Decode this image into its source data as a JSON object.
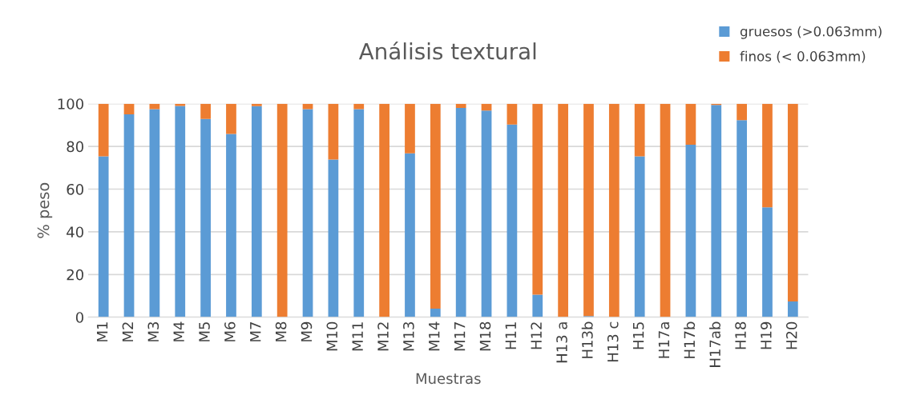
{
  "chart_data": {
    "type": "bar",
    "title": "Análisis textural",
    "xlabel": "Muestras",
    "ylabel": "% peso",
    "categories": [
      "M1",
      "M2",
      "M3",
      "M4",
      "M5",
      "M6",
      "M7",
      "M8",
      "M9",
      "M10",
      "M11",
      "M12",
      "M13",
      "M14",
      "M17",
      "M18",
      "H11",
      "H12",
      "H13 a",
      "H13b",
      "H13 c",
      "H15",
      "H17a",
      "H17b",
      "H17ab",
      "H18",
      "H19",
      "H20"
    ],
    "stacked": true,
    "series": [
      {
        "name": "gruesos (>0.063mm)",
        "color": "#5b9bd5",
        "values": [
          75.4,
          95,
          97.5,
          99,
          92.9,
          85.9,
          98.9,
          0,
          97.5,
          73.9,
          97.5,
          0,
          76.8,
          4,
          98,
          96.8,
          90.3,
          10.6,
          0,
          0.5,
          0,
          75.4,
          0,
          80.8,
          99.4,
          92.3,
          51.5,
          7.4
        ]
      },
      {
        "name": "finos (< 0.063mm)",
        "color": "#ed7d31",
        "values": [
          24.6,
          5,
          2.5,
          1,
          7.1,
          14.1,
          1.1,
          100,
          2.5,
          26.1,
          2.5,
          100,
          23.2,
          96,
          2,
          3.2,
          9.7,
          89.4,
          100,
          99.5,
          100,
          24.6,
          100,
          19.2,
          0.6,
          7.7,
          48.5,
          92.6
        ]
      }
    ],
    "ylim": [
      0,
      100
    ],
    "yticks": [
      0,
      20,
      40,
      60,
      80,
      100
    ],
    "grid": "y",
    "legend": "top right"
  }
}
